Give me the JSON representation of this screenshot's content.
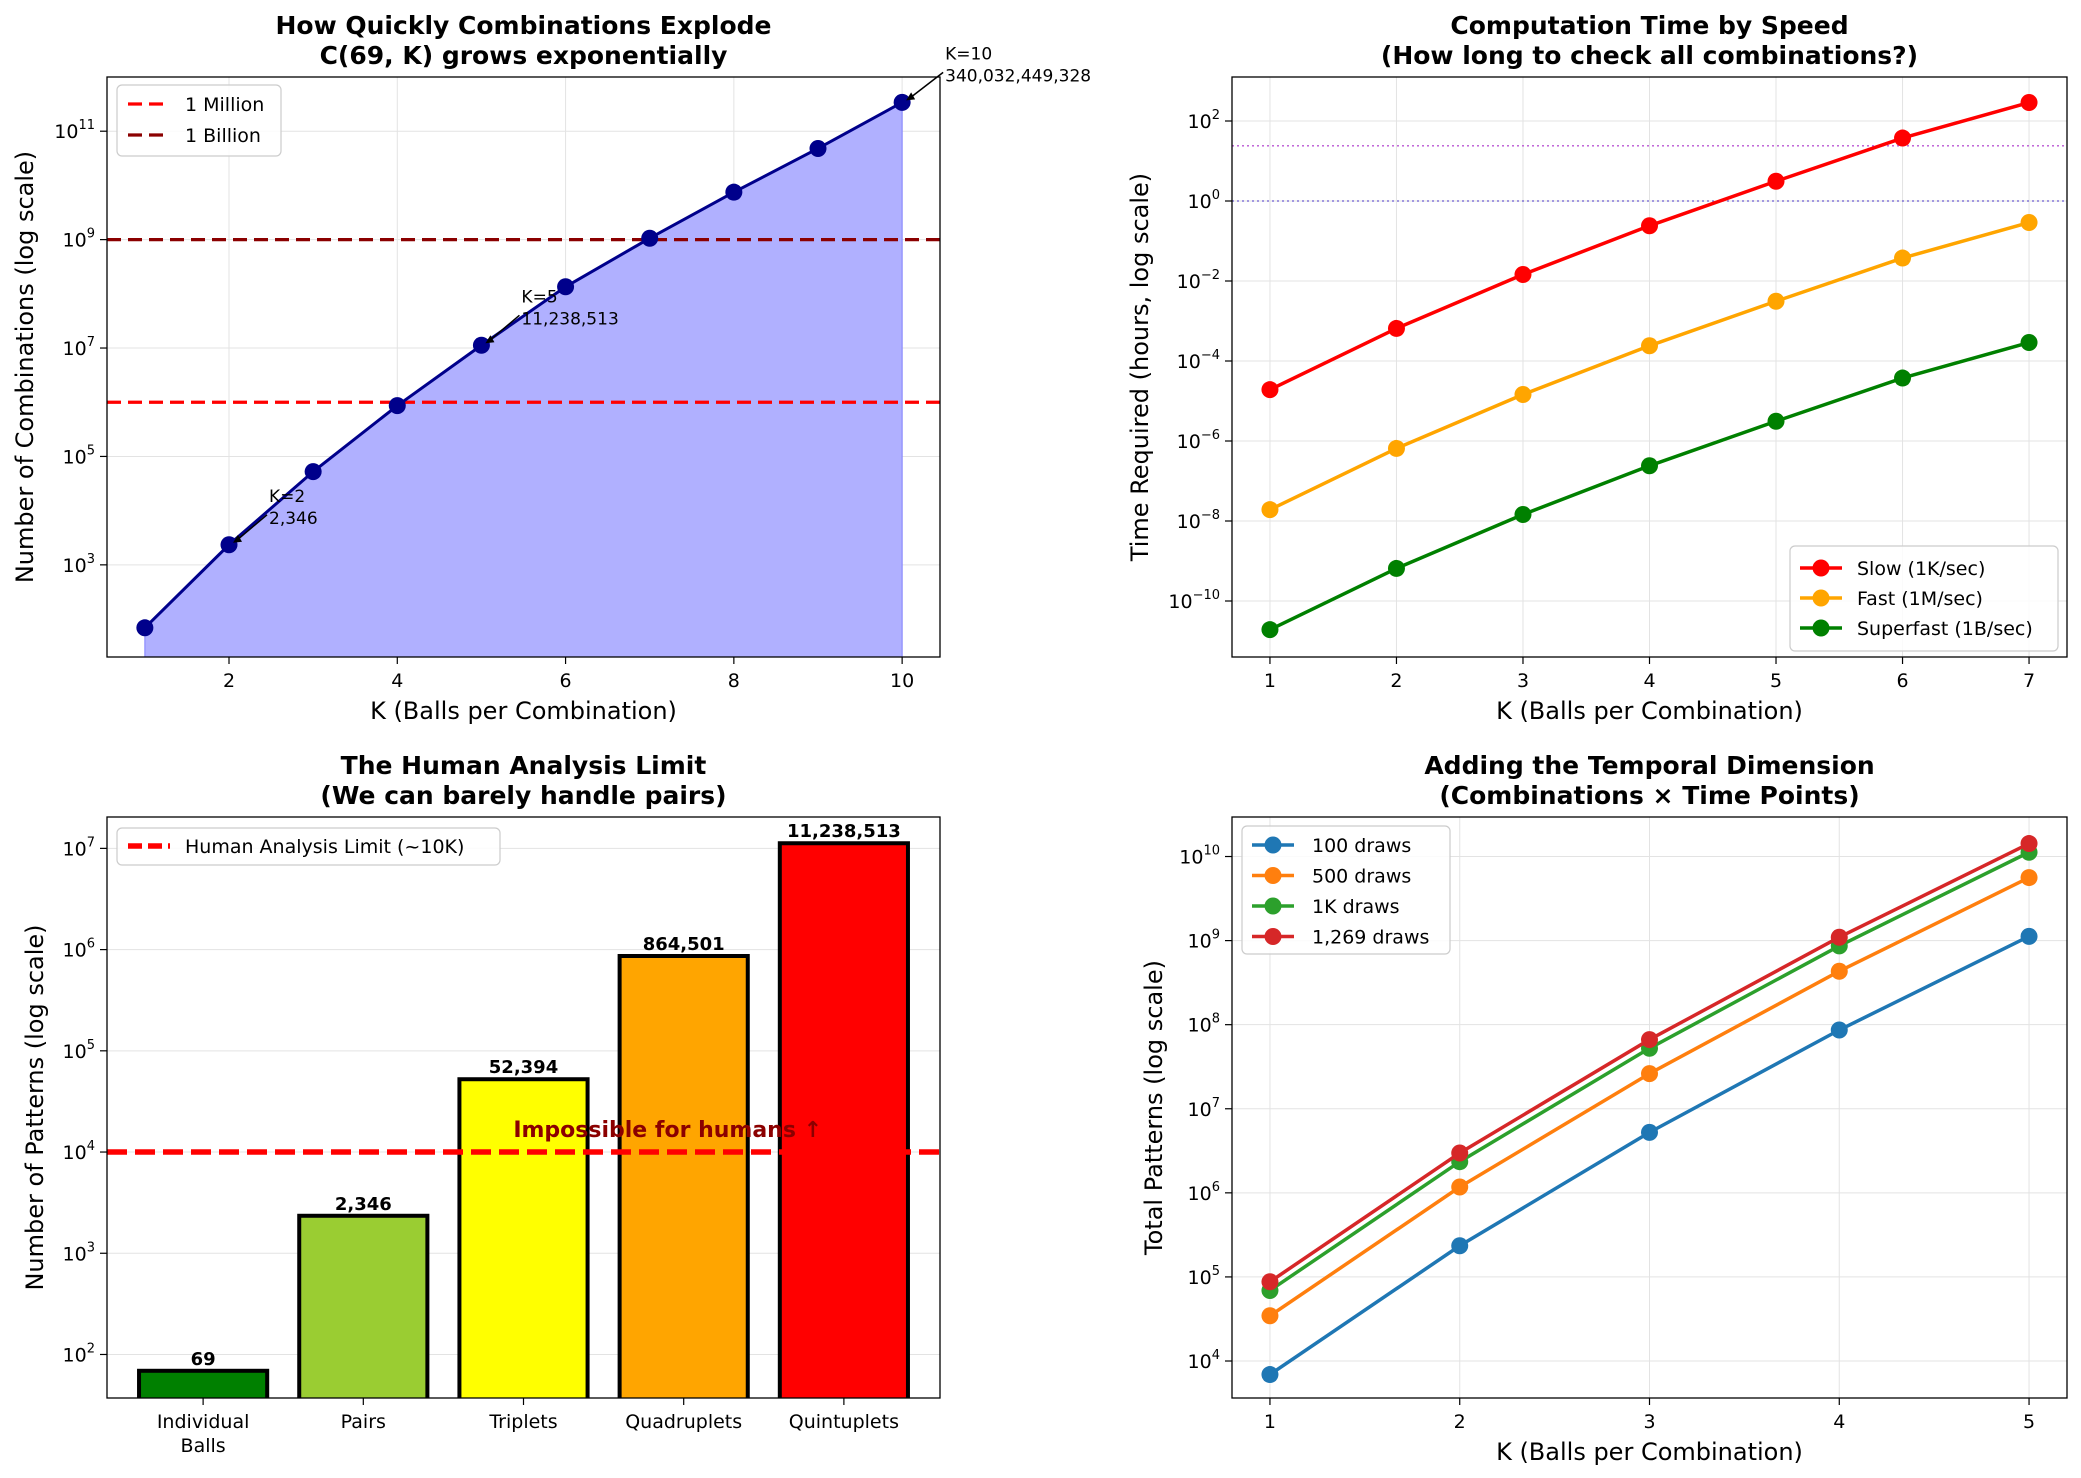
{
  "chart_data": [
    {
      "type": "line",
      "title": [
        "How Quickly Combinations Explode",
        "C(69, K) grows exponentially"
      ],
      "xlabel": "K (Balls per Combination)",
      "ylabel": "Number of Combinations (log scale)",
      "yscale": "log",
      "xlim": [
        0.55,
        10.45
      ],
      "ylim_log10": [
        1.3,
        12.0
      ],
      "xticks": [
        "2",
        "4",
        "6",
        "8",
        "10"
      ],
      "yticks": [
        {
          "base": "10",
          "exp": "3"
        },
        {
          "base": "10",
          "exp": "5"
        },
        {
          "base": "10",
          "exp": "7"
        },
        {
          "base": "10",
          "exp": "9"
        },
        {
          "base": "10",
          "exp": "11"
        }
      ],
      "x": [
        1,
        2,
        3,
        4,
        5,
        6,
        7,
        8,
        9,
        10
      ],
      "values": [
        69,
        2346,
        52394,
        864501,
        11238513,
        134862156,
        1060000000,
        7500000000,
        48000000000,
        340032449328
      ],
      "line_color": "#00008b",
      "fill_color": "#b0b0ff",
      "reference_lines": [
        {
          "name": "1 Million",
          "value": 1000000,
          "color": "#ff0000"
        },
        {
          "name": "1 Billion",
          "value": 1000000000,
          "color": "#8b0000"
        }
      ],
      "annotations": [
        {
          "k": 2,
          "lines": [
            "K=2",
            "2,346"
          ]
        },
        {
          "k": 5,
          "lines": [
            "K=5",
            "11,238,513"
          ]
        },
        {
          "k": 10,
          "lines": [
            "K=10",
            "340,032,449,328"
          ]
        }
      ],
      "legend": "top-left"
    },
    {
      "type": "line",
      "title": [
        "Computation Time by Speed",
        "(How long to check all combinations?)"
      ],
      "xlabel": "K (Balls per Combination)",
      "ylabel": "Time Required (hours, log scale)",
      "yscale": "log",
      "xlim": [
        0.7,
        7.3
      ],
      "ylim_log10": [
        -11.4,
        3.1
      ],
      "xticks": [
        "1",
        "2",
        "3",
        "4",
        "5",
        "6",
        "7"
      ],
      "yticks": [
        {
          "base": "10",
          "exp": "2"
        },
        {
          "base": "10",
          "exp": "0"
        },
        {
          "base": "10",
          "exp": "−2"
        },
        {
          "base": "10",
          "exp": "−4"
        },
        {
          "base": "10",
          "exp": "−6"
        },
        {
          "base": "10",
          "exp": "−8"
        },
        {
          "base": "10",
          "exp": "−10"
        }
      ],
      "x": [
        1,
        2,
        3,
        4,
        5,
        6,
        7
      ],
      "series": [
        {
          "name": "Slow (1K/sec)",
          "color": "#ff0000",
          "values": [
            1.92e-05,
            0.000652,
            0.01455,
            0.2401,
            3.12,
            37.46,
            290.0
          ]
        },
        {
          "name": "Fast (1M/sec)",
          "color": "#ffa500",
          "values": [
            1.92e-08,
            6.52e-07,
            1.455e-05,
            0.0002401,
            0.00312,
            0.03746,
            0.29
          ]
        },
        {
          "name": "Superfast (1B/sec)",
          "color": "#008000",
          "values": [
            1.92e-11,
            6.52e-10,
            1.455e-08,
            2.401e-07,
            3.12e-06,
            3.746e-05,
            0.00029
          ]
        }
      ],
      "reference_lines": [
        {
          "value": 1,
          "color": "#6a5acd"
        },
        {
          "value": 24,
          "color": "#ba55d3"
        }
      ],
      "legend": "bottom-right"
    },
    {
      "type": "bar",
      "title": [
        "The Human Analysis Limit",
        "(We can barely handle pairs)"
      ],
      "xlabel": "",
      "ylabel": "Number of Patterns (log scale)",
      "yscale": "log",
      "ylim_log10": [
        1.57,
        7.31
      ],
      "categories": [
        [
          "Individual",
          "Balls"
        ],
        [
          "Pairs"
        ],
        [
          "Triplets"
        ],
        [
          "Quadruplets"
        ],
        [
          "Quintuplets"
        ]
      ],
      "values": [
        69,
        2346,
        52394,
        864501,
        11238513
      ],
      "value_labels": [
        "69",
        "2,346",
        "52,394",
        "864,501",
        "11,238,513"
      ],
      "colors": [
        "#008000",
        "#9acd32",
        "#ffff00",
        "#ffa500",
        "#ff0000"
      ],
      "yticks": [
        {
          "base": "10",
          "exp": "2"
        },
        {
          "base": "10",
          "exp": "3"
        },
        {
          "base": "10",
          "exp": "4"
        },
        {
          "base": "10",
          "exp": "5"
        },
        {
          "base": "10",
          "exp": "6"
        },
        {
          "base": "10",
          "exp": "7"
        }
      ],
      "reference_lines": [
        {
          "name": "Human Analysis Limit (~10K)",
          "value": 10000,
          "color": "#ff0000"
        }
      ],
      "annotations": [
        {
          "text": "Impossible for humans ↑",
          "color": "#8b0000"
        }
      ],
      "legend": "top-left"
    },
    {
      "type": "line",
      "title": [
        "Adding the Temporal Dimension",
        "(Combinations × Time Points)"
      ],
      "xlabel": "K (Balls per Combination)",
      "ylabel": "Total Patterns (log scale)",
      "yscale": "log",
      "xlim": [
        0.8,
        5.2
      ],
      "ylim_log10": [
        3.56,
        10.47
      ],
      "xticks": [
        "1",
        "2",
        "3",
        "4",
        "5"
      ],
      "yticks": [
        {
          "base": "10",
          "exp": "4"
        },
        {
          "base": "10",
          "exp": "5"
        },
        {
          "base": "10",
          "exp": "6"
        },
        {
          "base": "10",
          "exp": "7"
        },
        {
          "base": "10",
          "exp": "8"
        },
        {
          "base": "10",
          "exp": "9"
        },
        {
          "base": "10",
          "exp": "10"
        }
      ],
      "x": [
        1,
        2,
        3,
        4,
        5
      ],
      "series": [
        {
          "name": "100 draws",
          "color": "#1f77b4",
          "values": [
            6900,
            234600,
            5239400,
            86450100,
            1123851300
          ]
        },
        {
          "name": "500 draws",
          "color": "#ff7f0e",
          "values": [
            34500,
            1173000,
            26197000,
            432250500,
            5619256500
          ]
        },
        {
          "name": "1K draws",
          "color": "#2ca02c",
          "values": [
            69000,
            2346000,
            52394000,
            864501000,
            11238513000
          ]
        },
        {
          "name": "1,269 draws",
          "color": "#d62728",
          "values": [
            87561,
            2977074,
            66487986,
            1097051769,
            14261732997
          ]
        }
      ],
      "legend": "top-left"
    }
  ]
}
